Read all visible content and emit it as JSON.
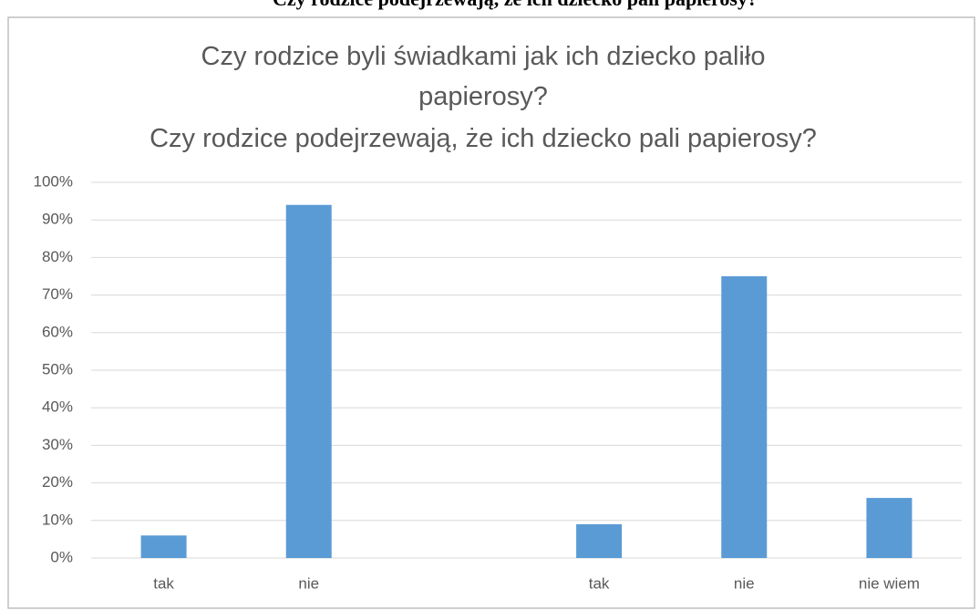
{
  "heading": "Czy rodzice podejrzewają, że ich dziecko pali papierosy?",
  "chart_data": {
    "type": "bar",
    "title": [
      "Czy rodzice byli świadkami jak ich dziecko paliło papierosy?",
      "Czy rodzice podejrzewają, że ich dziecko pali papierosy?"
    ],
    "categories": [
      "tak",
      "nie",
      null,
      "tak",
      "nie",
      "nie wiem"
    ],
    "values": [
      6,
      94,
      null,
      9,
      75,
      16
    ],
    "color": "#5b9bd5",
    "ylim": [
      0,
      100
    ],
    "yticks": [
      {
        "value": 0,
        "label": "0%"
      },
      {
        "value": 10,
        "label": "10%"
      },
      {
        "value": 20,
        "label": "20%"
      },
      {
        "value": 30,
        "label": "30%"
      },
      {
        "value": 40,
        "label": "40%"
      },
      {
        "value": 50,
        "label": "50%"
      },
      {
        "value": 60,
        "label": "60%"
      },
      {
        "value": 70,
        "label": "70%"
      },
      {
        "value": 80,
        "label": "80%"
      },
      {
        "value": 90,
        "label": "90%"
      },
      {
        "value": 100,
        "label": "100%"
      }
    ],
    "grid": true
  }
}
